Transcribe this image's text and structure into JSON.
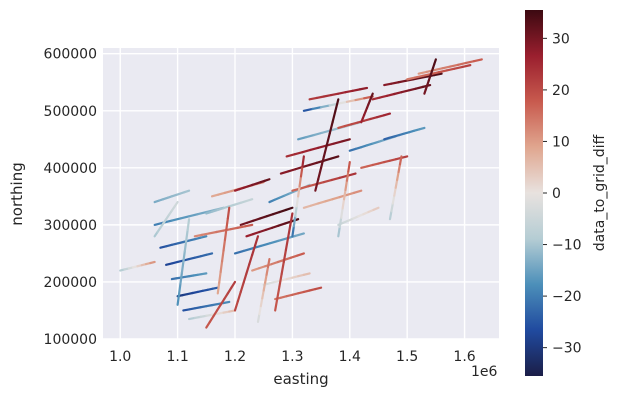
{
  "chart_data": {
    "type": "scatter",
    "title": "",
    "xlabel": "easting",
    "ylabel": "northing",
    "x_offset_label": "1e6",
    "xlim": [
      970000,
      1660000
    ],
    "ylim": [
      100000,
      610000
    ],
    "x_ticks": [
      {
        "value": 1000000,
        "label": "1.0"
      },
      {
        "value": 1100000,
        "label": "1.1"
      },
      {
        "value": 1200000,
        "label": "1.2"
      },
      {
        "value": 1300000,
        "label": "1.3"
      },
      {
        "value": 1400000,
        "label": "1.4"
      },
      {
        "value": 1500000,
        "label": "1.5"
      },
      {
        "value": 1600000,
        "label": "1.6"
      }
    ],
    "y_ticks": [
      {
        "value": 100000,
        "label": "100000"
      },
      {
        "value": 200000,
        "label": "200000"
      },
      {
        "value": 300000,
        "label": "300000"
      },
      {
        "value": 400000,
        "label": "400000"
      },
      {
        "value": 500000,
        "label": "500000"
      },
      {
        "value": 600000,
        "label": "600000"
      }
    ],
    "grid": true,
    "background_color": "#eaeaf2",
    "colorbar": {
      "label": "data_to_grid_diff",
      "range": [
        -35.5,
        35.5
      ],
      "ticks": [
        {
          "value": 30,
          "label": "30"
        },
        {
          "value": 20,
          "label": "20"
        },
        {
          "value": 10,
          "label": "10"
        },
        {
          "value": 0,
          "label": "0"
        },
        {
          "value": -10,
          "label": "−10"
        },
        {
          "value": -20,
          "label": "−20"
        },
        {
          "value": -30,
          "label": "−30"
        }
      ],
      "colors": [
        "#1b1e47",
        "#204a9f",
        "#4c8fb9",
        "#b5cdd4",
        "#e8e2df",
        "#e0a68f",
        "#c85a4e",
        "#9a1f2e",
        "#3c0911"
      ]
    },
    "series": [
      {
        "x": [
          1000000,
          1060000
        ],
        "y": [
          220000,
          235000
        ],
        "v": [
          -10,
          12
        ]
      },
      {
        "x": [
          1060000,
          1120000
        ],
        "y": [
          340000,
          360000
        ],
        "v": [
          -14,
          -10
        ]
      },
      {
        "x": [
          1060000,
          1180000
        ],
        "y": [
          300000,
          330000
        ],
        "v": [
          -20,
          -12
        ]
      },
      {
        "x": [
          1070000,
          1150000
        ],
        "y": [
          260000,
          280000
        ],
        "v": [
          -26,
          -18
        ]
      },
      {
        "x": [
          1080000,
          1160000
        ],
        "y": [
          230000,
          250000
        ],
        "v": [
          -28,
          -22
        ]
      },
      {
        "x": [
          1100000,
          1170000
        ],
        "y": [
          175000,
          190000
        ],
        "v": [
          -30,
          -24
        ]
      },
      {
        "x": [
          1110000,
          1190000
        ],
        "y": [
          150000,
          165000
        ],
        "v": [
          -26,
          -18
        ]
      },
      {
        "x": [
          1120000,
          1200000
        ],
        "y": [
          135000,
          150000
        ],
        "v": [
          -10,
          6
        ]
      },
      {
        "x": [
          1150000,
          1230000
        ],
        "y": [
          320000,
          345000
        ],
        "v": [
          -12,
          -6
        ]
      },
      {
        "x": [
          1160000,
          1250000
        ],
        "y": [
          350000,
          375000
        ],
        "v": [
          8,
          14
        ]
      },
      {
        "x": [
          1200000,
          1260000
        ],
        "y": [
          360000,
          380000
        ],
        "v": [
          26,
          32
        ]
      },
      {
        "x": [
          1210000,
          1300000
        ],
        "y": [
          300000,
          330000
        ],
        "v": [
          30,
          35
        ]
      },
      {
        "x": [
          1220000,
          1310000
        ],
        "y": [
          280000,
          310000
        ],
        "v": [
          26,
          34
        ]
      },
      {
        "x": [
          1200000,
          1320000
        ],
        "y": [
          250000,
          285000
        ],
        "v": [
          -22,
          -14
        ]
      },
      {
        "x": [
          1230000,
          1320000
        ],
        "y": [
          220000,
          250000
        ],
        "v": [
          10,
          18
        ]
      },
      {
        "x": [
          1250000,
          1330000
        ],
        "y": [
          195000,
          215000
        ],
        "v": [
          -4,
          6
        ]
      },
      {
        "x": [
          1270000,
          1350000
        ],
        "y": [
          170000,
          190000
        ],
        "v": [
          14,
          20
        ]
      },
      {
        "x": [
          1260000,
          1330000
        ],
        "y": [
          340000,
          370000
        ],
        "v": [
          -20,
          -10
        ]
      },
      {
        "x": [
          1280000,
          1380000
        ],
        "y": [
          390000,
          420000
        ],
        "v": [
          28,
          33
        ]
      },
      {
        "x": [
          1290000,
          1400000
        ],
        "y": [
          420000,
          450000
        ],
        "v": [
          24,
          30
        ]
      },
      {
        "x": [
          1300000,
          1410000
        ],
        "y": [
          360000,
          390000
        ],
        "v": [
          16,
          24
        ]
      },
      {
        "x": [
          1320000,
          1420000
        ],
        "y": [
          330000,
          360000
        ],
        "v": [
          6,
          12
        ]
      },
      {
        "x": [
          1310000,
          1420000
        ],
        "y": [
          450000,
          480000
        ],
        "v": [
          -16,
          -8
        ]
      },
      {
        "x": [
          1320000,
          1440000
        ],
        "y": [
          500000,
          525000
        ],
        "v": [
          -28,
          20
        ]
      },
      {
        "x": [
          1330000,
          1430000
        ],
        "y": [
          520000,
          540000
        ],
        "v": [
          22,
          28
        ]
      },
      {
        "x": [
          1380000,
          1470000
        ],
        "y": [
          470000,
          495000
        ],
        "v": [
          18,
          26
        ]
      },
      {
        "x": [
          1400000,
          1480000
        ],
        "y": [
          430000,
          455000
        ],
        "v": [
          -22,
          -12
        ]
      },
      {
        "x": [
          1420000,
          1500000
        ],
        "y": [
          400000,
          420000
        ],
        "v": [
          16,
          22
        ]
      },
      {
        "x": [
          1440000,
          1540000
        ],
        "y": [
          520000,
          545000
        ],
        "v": [
          24,
          32
        ]
      },
      {
        "x": [
          1460000,
          1560000
        ],
        "y": [
          545000,
          565000
        ],
        "v": [
          28,
          34
        ]
      },
      {
        "x": [
          1500000,
          1610000
        ],
        "y": [
          555000,
          580000
        ],
        "v": [
          14,
          22
        ]
      },
      {
        "x": [
          1520000,
          1630000
        ],
        "y": [
          565000,
          590000
        ],
        "v": [
          10,
          18
        ]
      },
      {
        "x": [
          1460000,
          1530000
        ],
        "y": [
          450000,
          470000
        ],
        "v": [
          -24,
          -16
        ]
      },
      {
        "x": [
          1380000,
          1450000
        ],
        "y": [
          300000,
          330000
        ],
        "v": [
          -6,
          4
        ]
      },
      {
        "x": [
          1130000,
          1230000
        ],
        "y": [
          280000,
          300000
        ],
        "v": [
          12,
          18
        ]
      },
      {
        "x": [
          1090000,
          1150000
        ],
        "y": [
          205000,
          215000
        ],
        "v": [
          -22,
          -16
        ]
      },
      {
        "x": [
          1150000,
          1200000
        ],
        "y": [
          120000,
          200000
        ],
        "v": [
          18,
          22
        ]
      },
      {
        "x": [
          1200000,
          1240000
        ],
        "y": [
          150000,
          280000
        ],
        "v": [
          20,
          24
        ]
      },
      {
        "x": [
          1270000,
          1300000
        ],
        "y": [
          150000,
          320000
        ],
        "v": [
          18,
          24
        ]
      },
      {
        "x": [
          1340000,
          1380000
        ],
        "y": [
          360000,
          520000
        ],
        "v": [
          30,
          34
        ]
      },
      {
        "x": [
          1420000,
          1440000
        ],
        "y": [
          480000,
          530000
        ],
        "v": [
          26,
          32
        ]
      },
      {
        "x": [
          1530000,
          1550000
        ],
        "y": [
          530000,
          590000
        ],
        "v": [
          30,
          34
        ]
      },
      {
        "x": [
          1300000,
          1320000
        ],
        "y": [
          280000,
          420000
        ],
        "v": [
          -24,
          28
        ]
      },
      {
        "x": [
          1380000,
          1400000
        ],
        "y": [
          280000,
          410000
        ],
        "v": [
          -12,
          20
        ]
      },
      {
        "x": [
          1470000,
          1490000
        ],
        "y": [
          310000,
          420000
        ],
        "v": [
          -10,
          18
        ]
      },
      {
        "x": [
          1060000,
          1100000
        ],
        "y": [
          280000,
          340000
        ],
        "v": [
          -10,
          -4
        ]
      },
      {
        "x": [
          1100000,
          1120000
        ],
        "y": [
          160000,
          310000
        ],
        "v": [
          -18,
          -8
        ]
      },
      {
        "x": [
          1170000,
          1190000
        ],
        "y": [
          180000,
          330000
        ],
        "v": [
          8,
          20
        ]
      },
      {
        "x": [
          1240000,
          1260000
        ],
        "y": [
          130000,
          240000
        ],
        "v": [
          -4,
          16
        ]
      }
    ]
  }
}
